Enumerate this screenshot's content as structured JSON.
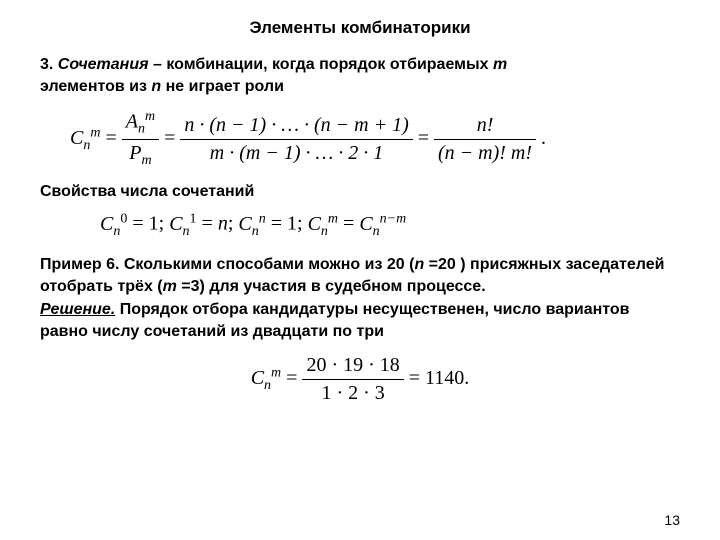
{
  "title": "Элементы комбинаторики",
  "section": {
    "number": "3.",
    "term": "Сочетания",
    "dash": " – ",
    "definition_part1": "комбинации, когда порядок отбираемых ",
    "var_m": "m",
    "definition_part2": " элементов из ",
    "var_n": "n",
    "definition_part3": " не играет роли"
  },
  "formula_main": {
    "lhs_base": "C",
    "lhs_sub": "n",
    "lhs_sup": "m",
    "eq": " = ",
    "frac1_num_base": "A",
    "frac1_num_sub": "n",
    "frac1_num_sup": "m",
    "frac1_den_base": "P",
    "frac1_den_sub": "m",
    "frac2_num": "n · (n − 1) · … · (n − m + 1)",
    "frac2_den": "m · (m − 1) · … · 2 · 1",
    "frac3_num": "n!",
    "frac3_den": "(n − m)! m!",
    "period": "."
  },
  "properties_heading": "Свойства числа сочетаний",
  "formula_props": {
    "c1_base": "C",
    "c1_sub": "n",
    "c1_sup": "0",
    "c1_val": "1",
    "c2_base": "C",
    "c2_sub": "n",
    "c2_sup": "1",
    "c2_val": "n",
    "c3_base": "C",
    "c3_sub": "n",
    "c3_sup": "n",
    "c3_val": "1",
    "c4l_base": "C",
    "c4l_sub": "n",
    "c4l_sup": "m",
    "c4r_base": "C",
    "c4r_sub": "n",
    "c4r_sup": "n−m",
    "sep": "; ",
    "eq": " = "
  },
  "example": {
    "label": "Пример 6.",
    "text1": " Сколькими способами можно из 20 (",
    "var_n": "n",
    "n_val": " =20 ) присяжных заседателей отобрать трёх (",
    "var_m": "m",
    "m_val": " =3) для участия в судебном процессе."
  },
  "solution": {
    "label": "Решение.",
    "text": " Порядок отбора  кандидатуры несущественен, число вариантов равно числу сочетаний из двадцати по три"
  },
  "formula_result": {
    "lhs_base": "C",
    "lhs_sub": "n",
    "lhs_sup": "m",
    "eq": " = ",
    "num": "20 · 19 · 18",
    "den": "1 · 2 · 3",
    "result": "1140.",
    "eq2": " = "
  },
  "page_number": "13",
  "colors": {
    "text": "#000000",
    "background": "#ffffff"
  },
  "fonts": {
    "body": "Arial",
    "math": "Times New Roman",
    "title_size": 17,
    "body_size": 16,
    "math_size": 20
  }
}
